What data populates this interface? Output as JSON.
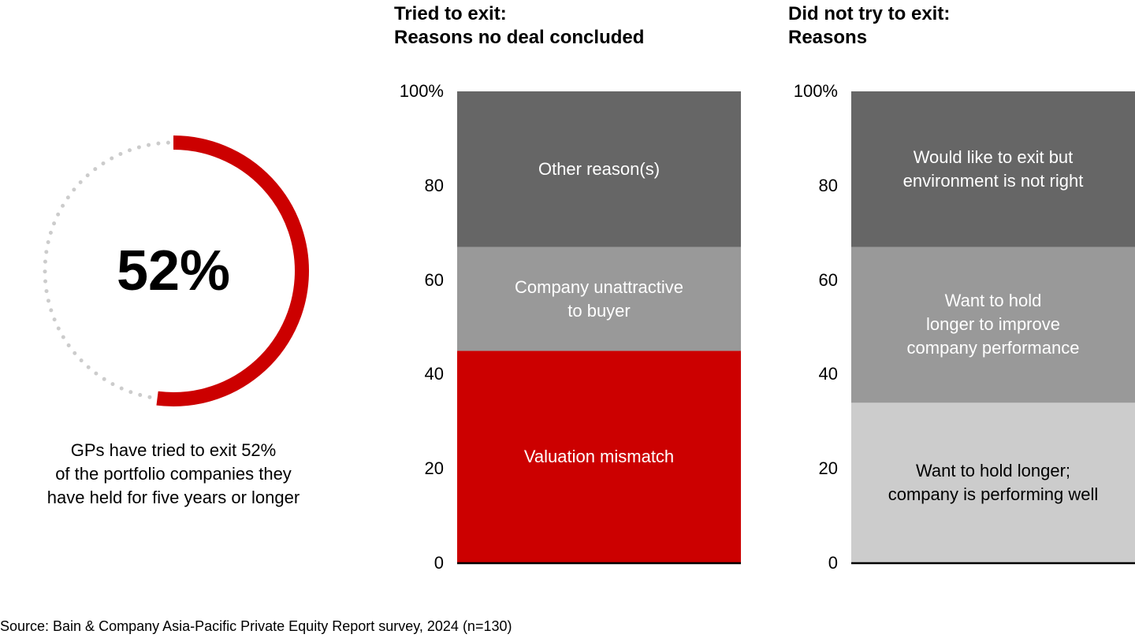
{
  "chart_data": [
    {
      "type": "donut",
      "values": [
        52
      ],
      "value_labels": [
        "52%"
      ],
      "color": "#cc0000",
      "rest_color": "#cccccc",
      "note": "GPs have tried to exit 52%\nof the portfolio companies they\nhave held for five years or longer"
    },
    {
      "type": "stacked_bar",
      "title": "Tried to exit:\nReasons no deal concluded",
      "ylim": [
        0,
        100
      ],
      "yticks": [
        0,
        20,
        40,
        60,
        80,
        {
          "value": 100,
          "label": "100%"
        }
      ],
      "series": [
        {
          "name": "Valuation mismatch",
          "color": "#cc0000",
          "text_color": "#ffffff",
          "values": [
            45
          ]
        },
        {
          "name": "Company unattractive\nto buyer",
          "color": "#999999",
          "text_color": "#ffffff",
          "values": [
            22
          ]
        },
        {
          "name": "Other reason(s)",
          "color": "#666666",
          "text_color": "#ffffff",
          "values": [
            33
          ]
        }
      ]
    },
    {
      "type": "stacked_bar",
      "title": "Did not try to exit:\nReasons",
      "ylim": [
        0,
        100
      ],
      "yticks": [
        0,
        20,
        40,
        60,
        80,
        {
          "value": 100,
          "label": "100%"
        }
      ],
      "series": [
        {
          "name": "Want to hold longer;\ncompany is performing well",
          "color": "#cccccc",
          "text_color": "#000000",
          "values": [
            34
          ]
        },
        {
          "name": "Want to hold\nlonger to improve\ncompany performance",
          "color": "#999999",
          "text_color": "#ffffff",
          "values": [
            33
          ]
        },
        {
          "name": "Would like to exit but\nenvironment is not right",
          "color": "#666666",
          "text_color": "#ffffff",
          "values": [
            33
          ]
        }
      ]
    }
  ],
  "source": "Source: Bain & Company Asia-Pacific Private Equity Report survey, 2024 (n=130)"
}
